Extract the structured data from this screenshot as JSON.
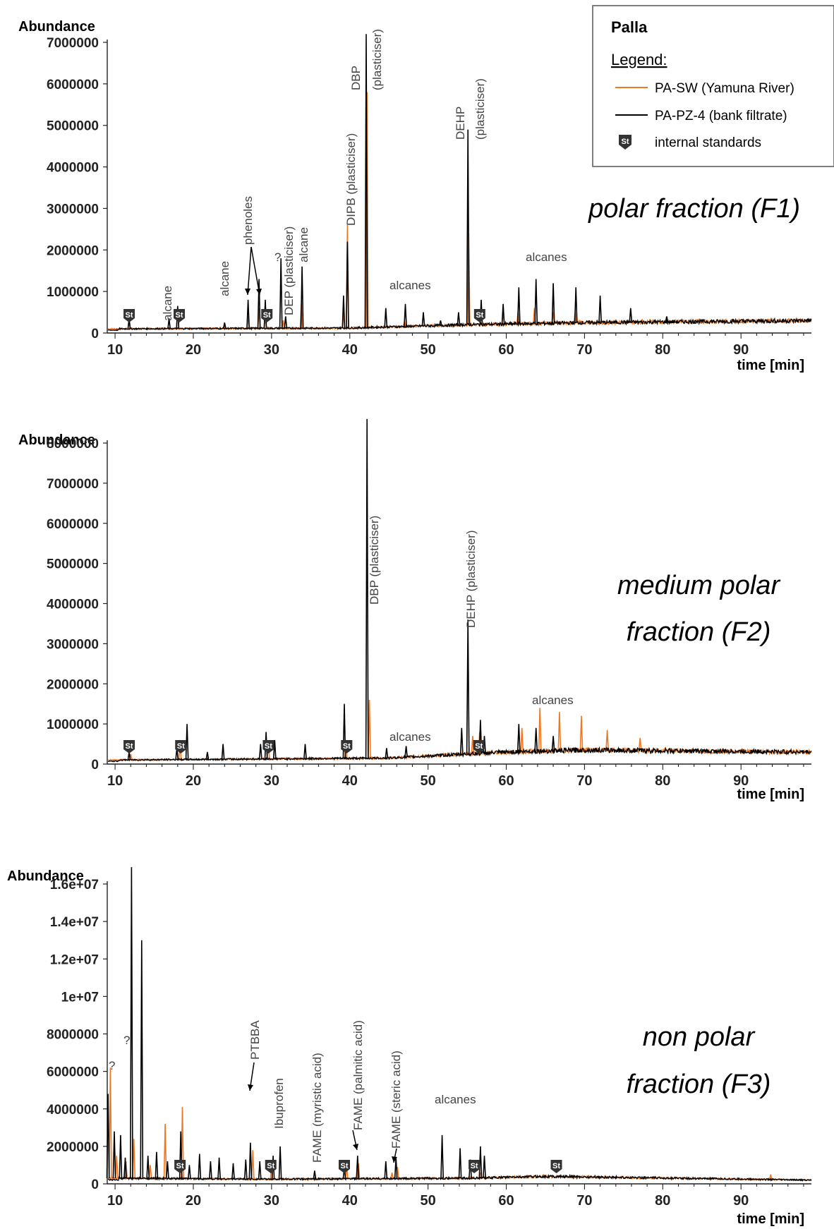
{
  "legend": {
    "title": "Palla",
    "subtitle": "Legend:",
    "entries": [
      {
        "label": "PA-SW (Yamuna River)",
        "color": "#f07820"
      },
      {
        "label": "PA-PZ-4 (bank filtrate)",
        "color": "#000000"
      },
      {
        "label": "internal standards",
        "icon": "st-marker-icon",
        "marker_text": "St"
      }
    ]
  },
  "chart_data": [
    {
      "type": "line",
      "title": "polar fraction (F1)",
      "ylabel": "Abundance",
      "xlabel": "time [min]",
      "xlim": [
        9,
        99
      ],
      "ylim": [
        0,
        7000000
      ],
      "xticks": [
        10,
        20,
        30,
        40,
        50,
        60,
        70,
        80,
        90
      ],
      "yticks": [
        0,
        1000000,
        2000000,
        3000000,
        4000000,
        5000000,
        6000000,
        7000000
      ],
      "ytick_labels": [
        "0",
        "1000000",
        "2000000",
        "3000000",
        "4000000",
        "5000000",
        "6000000",
        "7000000"
      ],
      "baseline": [
        [
          9,
          100000
        ],
        [
          40,
          120000
        ],
        [
          55,
          200000
        ],
        [
          70,
          250000
        ],
        [
          99,
          300000
        ]
      ],
      "series": [
        {
          "name": "PA-SW (Yamuna River)",
          "color": "#f07820",
          "peaks": [
            [
              11.8,
              300000
            ],
            [
              18,
              600000
            ],
            [
              24,
              150000
            ],
            [
              27,
              400000
            ],
            [
              28.4,
              600000
            ],
            [
              29.2,
              400000
            ],
            [
              31.5,
              300000
            ],
            [
              33.8,
              700000
            ],
            [
              39.2,
              500000
            ],
            [
              39.7,
              2600000
            ],
            [
              42.2,
              5800000
            ],
            [
              47,
              300000
            ],
            [
              55.2,
              2400000
            ],
            [
              56.8,
              600000
            ],
            [
              59.6,
              500000
            ],
            [
              61.5,
              500000
            ],
            [
              63.6,
              600000
            ],
            [
              66,
              500000
            ],
            [
              68.8,
              500000
            ]
          ]
        },
        {
          "name": "PA-PZ-4 (bank filtrate)",
          "color": "#000000",
          "peaks": [
            [
              11.8,
              350000
            ],
            [
              16.9,
              350000
            ],
            [
              18,
              650000
            ],
            [
              24,
              250000
            ],
            [
              27,
              800000
            ],
            [
              28.4,
              1300000
            ],
            [
              29.2,
              800000
            ],
            [
              31.2,
              1800000
            ],
            [
              31.8,
              400000
            ],
            [
              33.9,
              1600000
            ],
            [
              39.2,
              900000
            ],
            [
              39.7,
              2200000
            ],
            [
              42.1,
              7200000
            ],
            [
              44.6,
              600000
            ],
            [
              47.1,
              700000
            ],
            [
              49.4,
              500000
            ],
            [
              51.6,
              300000
            ],
            [
              53.9,
              500000
            ],
            [
              55.1,
              4900000
            ],
            [
              56.8,
              800000
            ],
            [
              59.6,
              700000
            ],
            [
              61.6,
              1100000
            ],
            [
              63.8,
              1300000
            ],
            [
              66,
              1200000
            ],
            [
              68.9,
              1100000
            ],
            [
              72,
              900000
            ],
            [
              75.9,
              600000
            ],
            [
              80.5,
              400000
            ],
            [
              84.2,
              300000
            ],
            [
              86.4,
              300000
            ]
          ]
        }
      ],
      "standards": [
        11.8,
        18.2,
        29.4,
        56.6
      ],
      "annotations": [
        {
          "text": "alcane",
          "x": 17,
          "rotate": true
        },
        {
          "text": "alcane",
          "x": 24.2,
          "rotate": true
        },
        {
          "text": "phenoles",
          "x": 27.6,
          "rotate": true
        },
        {
          "text": "?",
          "x": 30.9,
          "rotate": false
        },
        {
          "text": "DEP (plasticiser)",
          "x": 32.5,
          "rotate": true
        },
        {
          "text": "alcane",
          "x": 34.5,
          "rotate": true
        },
        {
          "text": "DIPB (plasticiser)",
          "x": 40.6,
          "rotate": true
        },
        {
          "text": "DBP",
          "x": 41.3,
          "rotate": true
        },
        {
          "text": "(plasticiser)",
          "x": 43.3,
          "rotate": true
        },
        {
          "text": "DEHP",
          "x": 54.2,
          "rotate": true
        },
        {
          "text": "(plasticiser)",
          "x": 56.4,
          "rotate": true
        },
        {
          "text": "alcanes",
          "x": 48.3,
          "rotate": false
        },
        {
          "text": "alcanes",
          "x": 65.8,
          "rotate": false
        }
      ]
    },
    {
      "type": "line",
      "title": "medium polar fraction (F2)",
      "title_lines": [
        "medium polar",
        "fraction (F2)"
      ],
      "ylabel": "Abundance",
      "xlabel": "time [min]",
      "xlim": [
        9,
        99
      ],
      "ylim": [
        0,
        8000000
      ],
      "xticks": [
        10,
        20,
        30,
        40,
        50,
        60,
        70,
        80,
        90
      ],
      "yticks": [
        0,
        1000000,
        2000000,
        3000000,
        4000000,
        5000000,
        6000000,
        7000000,
        8000000
      ],
      "ytick_labels": [
        "0",
        "1000000",
        "2000000",
        "3000000",
        "4000000",
        "5000000",
        "6000000",
        "7000000",
        "8000000"
      ],
      "baseline": [
        [
          9,
          100000
        ],
        [
          45,
          150000
        ],
        [
          60,
          300000
        ],
        [
          70,
          350000
        ],
        [
          99,
          300000
        ]
      ],
      "series": [
        {
          "name": "PA-SW (Yamuna River)",
          "color": "#f07820",
          "peaks": [
            [
              12,
              250000
            ],
            [
              18.3,
              600000
            ],
            [
              29.6,
              500000
            ],
            [
              39.5,
              600000
            ],
            [
              42.5,
              1600000
            ],
            [
              55.7,
              700000
            ],
            [
              56.6,
              800000
            ],
            [
              62,
              900000
            ],
            [
              64.3,
              1400000
            ],
            [
              66.8,
              1300000
            ],
            [
              69.6,
              1200000
            ],
            [
              72.9,
              850000
            ],
            [
              77.1,
              650000
            ]
          ]
        },
        {
          "name": "PA-PZ-4 (bank filtrate)",
          "color": "#000000",
          "peaks": [
            [
              11.8,
              300000
            ],
            [
              17.9,
              400000
            ],
            [
              19.2,
              1000000
            ],
            [
              21.8,
              300000
            ],
            [
              23.8,
              500000
            ],
            [
              28.6,
              500000
            ],
            [
              29.3,
              800000
            ],
            [
              30.4,
              600000
            ],
            [
              34.3,
              500000
            ],
            [
              39.3,
              1500000
            ],
            [
              42.2,
              8600000
            ],
            [
              44.7,
              400000
            ],
            [
              47.2,
              450000
            ],
            [
              54.3,
              900000
            ],
            [
              55.1,
              3600000
            ],
            [
              56.7,
              1100000
            ],
            [
              57.2,
              700000
            ],
            [
              61.6,
              1000000
            ],
            [
              63.8,
              900000
            ],
            [
              66,
              700000
            ],
            [
              68.8,
              400000
            ]
          ]
        }
      ],
      "standards": [
        11.8,
        18.4,
        29.6,
        39.6,
        56.5
      ],
      "annotations": [
        {
          "text": "DBP (plasticiser)",
          "x": 43.4,
          "rotate": true
        },
        {
          "text": "DEHP (plasticiser)",
          "x": 56.4,
          "rotate": true
        },
        {
          "text": "alcanes",
          "x": 48.5,
          "rotate": false
        },
        {
          "text": "alcanes",
          "x": 66.5,
          "rotate": false
        }
      ]
    },
    {
      "type": "line",
      "title": "non polar fraction (F3)",
      "title_lines": [
        "non polar",
        "fraction (F3)"
      ],
      "ylabel": "Abundance",
      "xlabel": "time [min]",
      "xlim": [
        9,
        99
      ],
      "ylim": [
        0,
        16000000
      ],
      "xticks": [
        10,
        20,
        30,
        40,
        50,
        60,
        70,
        80,
        90
      ],
      "yticks": [
        0,
        2000000,
        4000000,
        6000000,
        8000000,
        10000000,
        12000000,
        14000000,
        16000000
      ],
      "ytick_labels": [
        "0",
        "2000000",
        "4000000",
        "6000000",
        "8000000",
        "1e+07",
        "1.2e+07",
        "1.4e+07",
        "1.6e+07"
      ],
      "baseline": [
        [
          9,
          300000
        ],
        [
          30,
          250000
        ],
        [
          55,
          300000
        ],
        [
          65,
          400000
        ],
        [
          99,
          200000
        ]
      ],
      "series": [
        {
          "name": "PA-SW (Yamuna River)",
          "color": "#f07820",
          "peaks": [
            [
              9.4,
              6200000
            ],
            [
              10.2,
              1500000
            ],
            [
              11.4,
              1200000
            ],
            [
              12.4,
              2400000
            ],
            [
              14.5,
              1000000
            ],
            [
              16.4,
              3200000
            ],
            [
              18.6,
              4100000
            ],
            [
              27.6,
              1800000
            ],
            [
              30,
              1000000
            ],
            [
              39.6,
              900000
            ],
            [
              41.1,
              1100000
            ],
            [
              45.4,
              600000
            ],
            [
              46.1,
              900000
            ],
            [
              56.7,
              600000
            ],
            [
              61.5,
              400000
            ],
            [
              93.8,
              500000
            ]
          ]
        },
        {
          "name": "PA-PZ-4 (bank filtrate)",
          "color": "#000000",
          "peaks": [
            [
              9.1,
              4800000
            ],
            [
              9.9,
              2800000
            ],
            [
              10.7,
              2600000
            ],
            [
              11.3,
              1400000
            ],
            [
              12.1,
              16900000
            ],
            [
              13.4,
              13000000
            ],
            [
              14.2,
              1500000
            ],
            [
              15.3,
              1700000
            ],
            [
              16.7,
              1200000
            ],
            [
              18.4,
              2800000
            ],
            [
              19.5,
              1000000
            ],
            [
              20.8,
              1600000
            ],
            [
              22.2,
              1200000
            ],
            [
              23.3,
              1400000
            ],
            [
              25.1,
              1100000
            ],
            [
              26.7,
              1300000
            ],
            [
              27.3,
              2200000
            ],
            [
              28.5,
              1200000
            ],
            [
              30.2,
              1500000
            ],
            [
              31.1,
              2000000
            ],
            [
              35.5,
              700000
            ],
            [
              39.3,
              900000
            ],
            [
              41,
              1500000
            ],
            [
              44.6,
              1200000
            ],
            [
              45.9,
              1400000
            ],
            [
              51.8,
              2600000
            ],
            [
              54.1,
              1900000
            ],
            [
              55.4,
              1300000
            ],
            [
              56.7,
              2000000
            ],
            [
              57.2,
              1500000
            ]
          ]
        }
      ],
      "standards": [
        18.3,
        29.9,
        39.3,
        55.9,
        66.4
      ],
      "annotations": [
        {
          "text": "?",
          "x": 9.5,
          "rotate": false
        },
        {
          "text": "?",
          "x": 11.1,
          "rotate": false
        },
        {
          "text": "PTBBA",
          "x": 27.9,
          "rotate": true
        },
        {
          "text": "Ibuprofen",
          "x": 30.8,
          "rotate": true
        },
        {
          "text": "FAME (myristic acid)",
          "x": 36,
          "rotate": true
        },
        {
          "text": "FAME (palmitic acid)",
          "x": 41.5,
          "rotate": true
        },
        {
          "text": "FAME (steric acid)",
          "x": 46.3,
          "rotate": true
        },
        {
          "text": "alcanes",
          "x": 54.2,
          "rotate": false
        }
      ]
    }
  ]
}
